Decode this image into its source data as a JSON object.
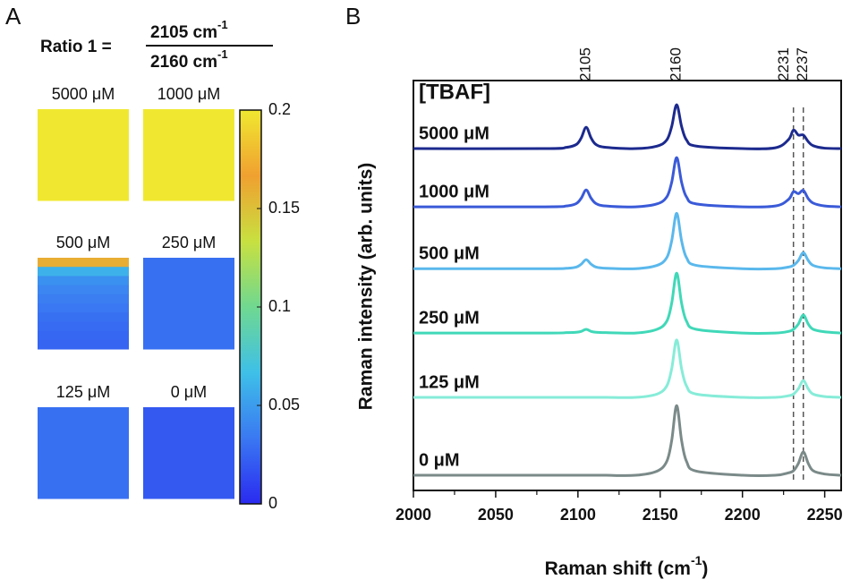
{
  "panel_a": {
    "label": "A",
    "ratio": {
      "label": "Ratio 1 =",
      "numerator": "2105 cm",
      "denominator": "2160 cm",
      "exponent": "-1"
    },
    "maps": [
      {
        "label": "5000 μM",
        "values": [
          0.2
        ]
      },
      {
        "label": "1000 μM",
        "values": [
          0.2
        ]
      },
      {
        "label": "500 μM",
        "values": [
          0.16,
          0.06,
          0.045,
          0.04,
          0.036,
          0.033,
          0.03,
          0.028,
          0.026,
          0.025
        ]
      },
      {
        "label": "250 μM",
        "values": [
          0.03
        ]
      },
      {
        "label": "125 μM",
        "values": [
          0.03
        ]
      },
      {
        "label": "0 μM",
        "values": [
          0.02
        ]
      }
    ],
    "colorbar": {
      "lim": [
        0,
        0.2
      ],
      "ticks": [
        0,
        0.05,
        0.1,
        0.15,
        0.2
      ],
      "colormap": [
        "#2a2af0",
        "#3a78f2",
        "#3ec0e8",
        "#70d890",
        "#c8e040",
        "#f0a030",
        "#f0e830"
      ]
    }
  },
  "chart_data": {
    "type": "line",
    "panel_label": "B",
    "annotation": "[TBAF]",
    "x_label": "Raman shift (cm",
    "x_label_exponent": "-1",
    "x_label_end": ")",
    "y_label": "Raman intensity (arb. units)",
    "xlim": [
      2000,
      2260
    ],
    "xticks": [
      2000,
      2050,
      2100,
      2150,
      2200,
      2250
    ],
    "ylim": [
      0,
      10
    ],
    "peak_labels": [
      2105,
      2160,
      2231,
      2237
    ],
    "dashed_peaks": [
      2231,
      2237
    ],
    "x": [
      2000,
      2080,
      2093,
      2099,
      2102,
      2105,
      2108,
      2111,
      2117,
      2135,
      2148,
      2154,
      2157,
      2160,
      2163,
      2166,
      2172,
      2200,
      2220,
      2228,
      2231,
      2234,
      2237,
      2240,
      2243,
      2250,
      2260
    ],
    "series": [
      {
        "name": "5000 μM",
        "color": "#1c2a8e",
        "values": [
          8.34,
          8.34,
          8.37,
          8.44,
          8.6,
          8.86,
          8.6,
          8.44,
          8.37,
          8.34,
          8.4,
          8.55,
          8.88,
          9.41,
          8.88,
          8.55,
          8.4,
          8.34,
          8.36,
          8.56,
          8.79,
          8.67,
          8.67,
          8.51,
          8.41,
          8.35,
          8.34
        ]
      },
      {
        "name": "1000 μM",
        "color": "#3a5ad8",
        "values": [
          6.92,
          6.92,
          6.94,
          7.0,
          7.13,
          7.33,
          7.13,
          7.0,
          6.94,
          6.92,
          6.99,
          7.16,
          7.52,
          8.12,
          7.52,
          7.16,
          6.99,
          6.92,
          6.94,
          7.1,
          7.29,
          7.24,
          7.32,
          7.12,
          7.01,
          6.94,
          6.92
        ]
      },
      {
        "name": "500 μM",
        "color": "#5ab8ec",
        "values": [
          5.41,
          5.41,
          5.42,
          5.45,
          5.52,
          5.63,
          5.52,
          5.45,
          5.42,
          5.41,
          5.49,
          5.68,
          6.09,
          6.76,
          6.09,
          5.68,
          5.49,
          5.41,
          5.41,
          5.45,
          5.49,
          5.61,
          5.8,
          5.61,
          5.49,
          5.43,
          5.41
        ]
      },
      {
        "name": "250 μM",
        "color": "#40d8b8",
        "values": [
          3.84,
          3.84,
          3.85,
          3.86,
          3.88,
          3.93,
          3.88,
          3.86,
          3.85,
          3.84,
          3.93,
          4.13,
          4.57,
          5.3,
          4.57,
          4.13,
          3.93,
          3.84,
          3.84,
          3.88,
          3.93,
          4.06,
          4.28,
          4.06,
          3.93,
          3.87,
          3.84
        ]
      },
      {
        "name": "125 μM",
        "color": "#86ecd8",
        "values": [
          2.27,
          2.27,
          2.27,
          2.27,
          2.27,
          2.27,
          2.27,
          2.27,
          2.27,
          2.27,
          2.35,
          2.55,
          2.97,
          3.67,
          2.97,
          2.55,
          2.35,
          2.27,
          2.27,
          2.31,
          2.35,
          2.48,
          2.68,
          2.48,
          2.35,
          2.29,
          2.27
        ]
      },
      {
        "name": "0 μM",
        "color": "#7a8a88",
        "values": [
          0.37,
          0.37,
          0.37,
          0.37,
          0.37,
          0.37,
          0.37,
          0.37,
          0.37,
          0.37,
          0.47,
          0.71,
          1.22,
          2.07,
          1.22,
          0.71,
          0.47,
          0.37,
          0.37,
          0.43,
          0.48,
          0.66,
          0.94,
          0.66,
          0.48,
          0.4,
          0.37
        ]
      }
    ]
  }
}
